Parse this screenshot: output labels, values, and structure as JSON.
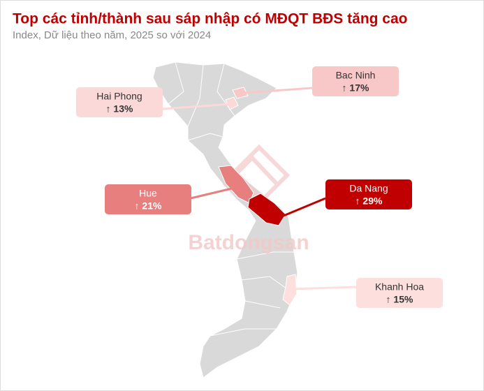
{
  "header": {
    "title": "Top các tỉnh/thành sau sáp nhập có MĐQT BĐS tăng cao",
    "subtitle": "Index, Dữ liệu theo năm, 2025 so với 2024"
  },
  "watermark": "Batdongsan",
  "regions": [
    {
      "name": "Hai Phong",
      "change": "↑ 13%"
    },
    {
      "name": "Bac Ninh",
      "change": "↑ 17%"
    },
    {
      "name": "Hue",
      "change": "↑ 21%"
    },
    {
      "name": "Da Nang",
      "change": "↑ 29%"
    },
    {
      "name": "Khanh Hoa",
      "change": "↑ 15%"
    }
  ]
}
